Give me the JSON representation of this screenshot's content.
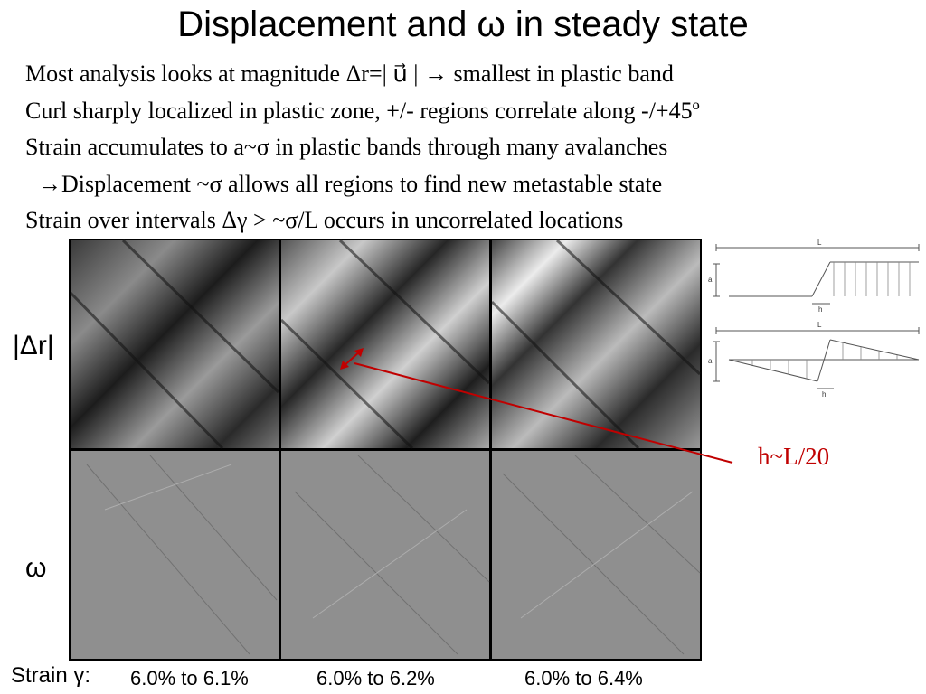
{
  "title": "Displacement and ω in steady state",
  "bullets": [
    "Most analysis looks at magnitude Δr=| u⃗ | → smallest in plastic band",
    "Curl sharply localized in plastic zone, +/- regions correlate along -/+45º",
    "Strain accumulates to a~σ in plastic bands through many avalanches",
    "→Displacement ~σ allows all regions to find new metastable state",
    "Strain over intervals Δγ > ~σ/L occurs in uncorrelated locations"
  ],
  "rows": {
    "top_label": "|Δr|",
    "bottom_label": "ω"
  },
  "strain": {
    "label": "Strain γ:",
    "intervals": [
      "6.0% to 6.1%",
      "6.0% to 6.2%",
      "6.0% to 6.4%"
    ]
  },
  "annotation": "h~L/20",
  "diagram": {
    "label_L": "L",
    "label_a": "a",
    "label_h": "h"
  },
  "colors": {
    "annotation": "#c00000"
  }
}
